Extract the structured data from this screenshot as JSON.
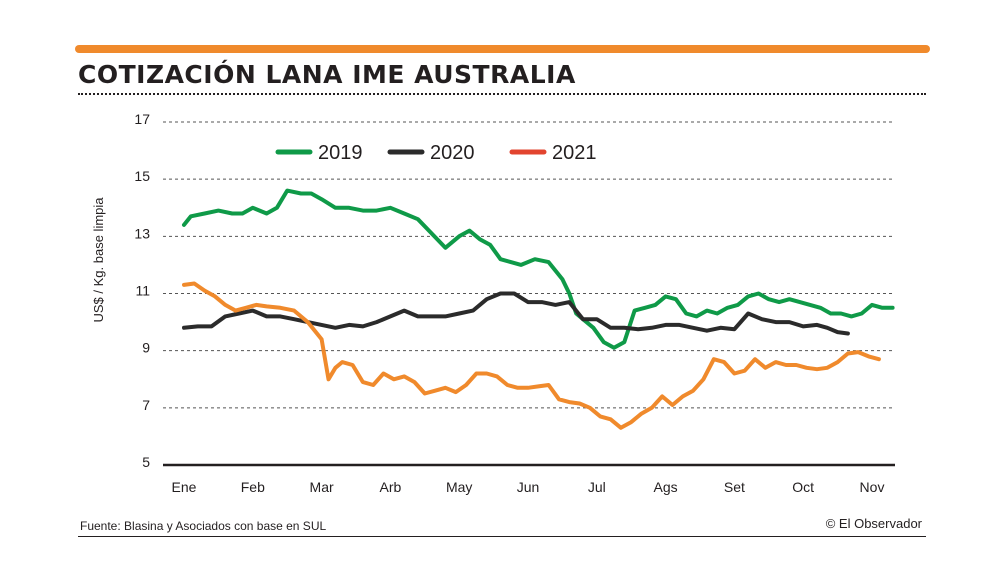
{
  "title": "COTIZACIÓN LANA IME AUSTRALIA",
  "source": "Fuente: Blasina y Asociados con base en SUL",
  "credit": "© El Observador",
  "colors": {
    "accent_bar": "#f08a2c",
    "s2019": "#0f9a48",
    "s2020": "#2b2b2b",
    "s2021": "#f08a2c",
    "s2021_legend": "#e2442f"
  },
  "chart_data": {
    "type": "line",
    "ylabel": "US$ / Kg. base limpia",
    "ylim": [
      5,
      17
    ],
    "yticks": [
      5,
      7,
      9,
      11,
      13,
      15,
      17
    ],
    "grid": true,
    "legend_position": "top-center",
    "categories": [
      "Ene",
      "Feb",
      "Mar",
      "Arb",
      "May",
      "Jun",
      "Jul",
      "Ags",
      "Set",
      "Oct",
      "Nov"
    ],
    "series": [
      {
        "name": "2019",
        "color": "#0f9a48",
        "x": [
          0,
          0.1,
          0.3,
          0.5,
          0.7,
          0.85,
          1,
          1.2,
          1.35,
          1.5,
          1.7,
          1.85,
          2,
          2.2,
          2.4,
          2.6,
          2.8,
          3,
          3.2,
          3.4,
          3.6,
          3.8,
          4,
          4.15,
          4.3,
          4.45,
          4.6,
          4.75,
          4.9,
          5.1,
          5.3,
          5.5,
          5.6,
          5.7,
          5.8,
          5.95,
          6.1,
          6.25,
          6.4,
          6.55,
          6.7,
          6.85,
          7,
          7.15,
          7.3,
          7.45,
          7.6,
          7.75,
          7.9,
          8.05,
          8.2,
          8.35,
          8.5,
          8.65,
          8.8,
          8.95,
          9.1,
          9.25,
          9.4,
          9.55,
          9.7,
          9.85,
          10,
          10.15,
          10.3
        ],
        "values": [
          13.4,
          13.7,
          13.8,
          13.9,
          13.8,
          13.8,
          14.0,
          13.8,
          14.0,
          14.6,
          14.5,
          14.5,
          14.3,
          14.0,
          14.0,
          13.9,
          13.9,
          14.0,
          13.8,
          13.6,
          13.1,
          12.6,
          13.0,
          13.2,
          12.9,
          12.7,
          12.2,
          12.1,
          12.0,
          12.2,
          12.1,
          11.5,
          11.0,
          10.3,
          10.1,
          9.8,
          9.3,
          9.1,
          9.3,
          10.4,
          10.5,
          10.6,
          10.9,
          10.8,
          10.3,
          10.2,
          10.4,
          10.3,
          10.5,
          10.6,
          10.9,
          11.0,
          10.8,
          10.7,
          10.8,
          10.7,
          10.6,
          10.5,
          10.3,
          10.3,
          10.2,
          10.3,
          10.6,
          10.5,
          10.5
        ]
      },
      {
        "name": "2020",
        "color": "#2b2b2b",
        "x": [
          0,
          0.2,
          0.4,
          0.6,
          0.8,
          1,
          1.2,
          1.4,
          1.6,
          1.8,
          2,
          2.2,
          2.4,
          2.6,
          2.8,
          3,
          3.2,
          3.4,
          3.6,
          3.8,
          4,
          4.2,
          4.4,
          4.6,
          4.8,
          5,
          5.2,
          5.4,
          5.6,
          5.8,
          6,
          6.2,
          6.4,
          6.6,
          6.8,
          7,
          7.2,
          7.4,
          7.6,
          7.8,
          8,
          8.2,
          8.4,
          8.6,
          8.8,
          9,
          9.2,
          9.35,
          9.5,
          9.65
        ],
        "values": [
          9.8,
          9.85,
          9.85,
          10.2,
          10.3,
          10.4,
          10.2,
          10.2,
          10.1,
          10.0,
          9.9,
          9.8,
          9.9,
          9.85,
          10.0,
          10.2,
          10.4,
          10.2,
          10.2,
          10.2,
          10.3,
          10.4,
          10.8,
          11.0,
          11.0,
          10.7,
          10.7,
          10.6,
          10.7,
          10.1,
          10.1,
          9.8,
          9.8,
          9.75,
          9.8,
          9.9,
          9.9,
          9.8,
          9.7,
          9.8,
          9.75,
          10.3,
          10.1,
          10.0,
          10.0,
          9.85,
          9.9,
          9.8,
          9.65,
          9.6
        ]
      },
      {
        "name": "2021",
        "color": "#f08a2c",
        "x": [
          0,
          0.15,
          0.3,
          0.45,
          0.6,
          0.75,
          0.9,
          1.05,
          1.2,
          1.4,
          1.6,
          1.8,
          2,
          2.1,
          2.2,
          2.3,
          2.45,
          2.6,
          2.75,
          2.9,
          3.05,
          3.2,
          3.35,
          3.5,
          3.65,
          3.8,
          3.95,
          4.1,
          4.25,
          4.4,
          4.55,
          4.7,
          4.85,
          5,
          5.15,
          5.3,
          5.45,
          5.6,
          5.75,
          5.9,
          6.05,
          6.2,
          6.35,
          6.5,
          6.65,
          6.8,
          6.95,
          7.1,
          7.25,
          7.4,
          7.55,
          7.7,
          7.85,
          8,
          8.15,
          8.3,
          8.45,
          8.6,
          8.75,
          8.9,
          9.05,
          9.2,
          9.35,
          9.5,
          9.65,
          9.8,
          9.95,
          10.1
        ],
        "values": [
          11.3,
          11.35,
          11.1,
          10.9,
          10.6,
          10.4,
          10.5,
          10.6,
          10.55,
          10.5,
          10.4,
          10.0,
          9.4,
          8.0,
          8.4,
          8.6,
          8.5,
          7.9,
          7.8,
          8.2,
          8.0,
          8.1,
          7.9,
          7.5,
          7.6,
          7.7,
          7.55,
          7.8,
          8.2,
          8.2,
          8.1,
          7.8,
          7.7,
          7.7,
          7.75,
          7.8,
          7.3,
          7.2,
          7.15,
          7.0,
          6.7,
          6.6,
          6.3,
          6.5,
          6.8,
          7.0,
          7.4,
          7.1,
          7.4,
          7.6,
          8.0,
          8.7,
          8.6,
          8.2,
          8.3,
          8.7,
          8.4,
          8.6,
          8.5,
          8.5,
          8.4,
          8.35,
          8.4,
          8.6,
          8.9,
          8.95,
          8.8,
          8.7
        ]
      }
    ]
  }
}
